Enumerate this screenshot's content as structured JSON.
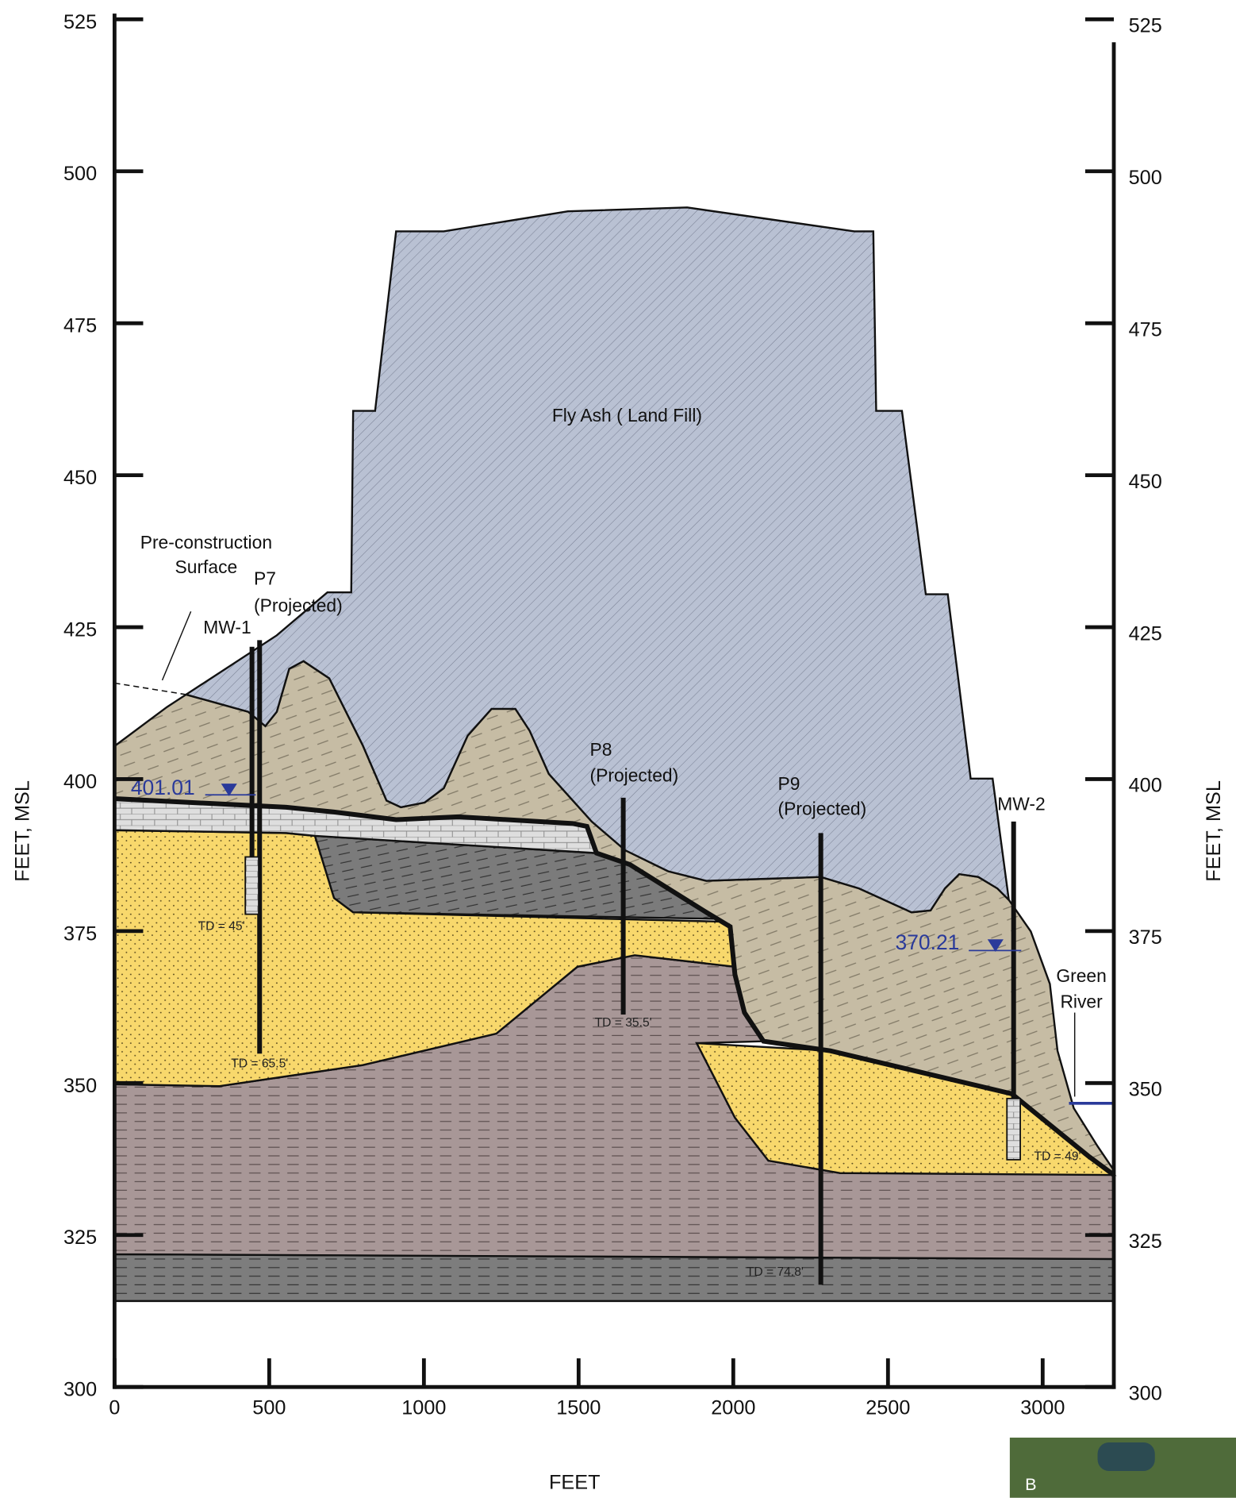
{
  "axes": {
    "x_title": "FEET",
    "y_title": "FEET, MSL",
    "xlim": [
      0,
      3230
    ],
    "ylim": [
      300,
      525
    ],
    "x_ticks": [
      0,
      500,
      1000,
      1500,
      2000,
      2500,
      3000
    ],
    "y_ticks": [
      525,
      500,
      475,
      450,
      425,
      400,
      375,
      350,
      325,
      300
    ]
  },
  "labels": {
    "fly_ash": "Fly Ash ( Land Fill)",
    "pre_construction": [
      "Pre-construction",
      "Surface"
    ],
    "green_river": [
      "Green",
      "River"
    ]
  },
  "wells": [
    {
      "name": "MW-1",
      "td": "TD = 45'"
    },
    {
      "name": "P7",
      "note": "(Projected)",
      "td": "TD = 65.5'"
    },
    {
      "name": "P8",
      "note": "(Projected)",
      "td": "TD = 35.5'"
    },
    {
      "name": "P9",
      "note": "(Projected)",
      "td": "TD = 74.8'"
    },
    {
      "name": "MW-2",
      "td": "TD = 49'"
    }
  ],
  "water_levels": [
    "401.01",
    "370.21"
  ],
  "map_inset": {
    "label": "B"
  }
}
